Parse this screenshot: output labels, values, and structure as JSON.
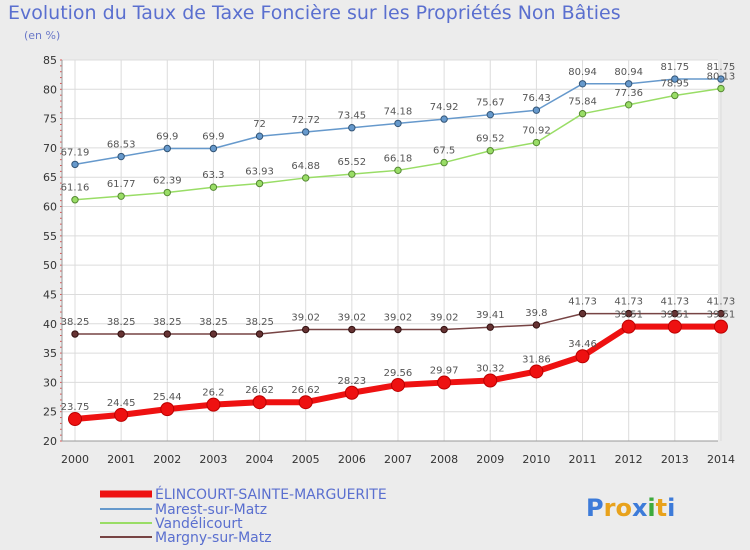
{
  "chart_data": {
    "type": "line",
    "title": "Evolution du Taux de Taxe Foncière sur les Propriétés Non Bâties",
    "ylabel": "(en %)",
    "xlabel": "",
    "ylim": [
      20,
      85
    ],
    "yticks": [
      20,
      25,
      30,
      35,
      40,
      45,
      50,
      55,
      60,
      65,
      70,
      75,
      80,
      85
    ],
    "grid": true,
    "legend_position": "bottom-left",
    "categories": [
      "2000",
      "2001",
      "2002",
      "2003",
      "2004",
      "2005",
      "2006",
      "2007",
      "2008",
      "2009",
      "2010",
      "2011",
      "2012",
      "2013",
      "2014"
    ],
    "series": [
      {
        "name": "ÉLINCOURT-SAINTE-MARGUERITE",
        "color": "#ee1111",
        "values": [
          23.75,
          24.45,
          25.44,
          26.2,
          26.62,
          26.62,
          28.23,
          29.56,
          29.97,
          30.32,
          31.86,
          34.46,
          39.51,
          39.51,
          39.51
        ],
        "labels": [
          "23.75",
          "24.45",
          "25.44",
          "26.2",
          "26.62",
          "26.62",
          "28.23",
          "29.56",
          "29.97",
          "30.32",
          "31.86",
          "34.46",
          "39.51",
          "39.51",
          "39.51"
        ]
      },
      {
        "name": "Marest-sur-Matz",
        "color": "#6699cc",
        "values": [
          67.19,
          68.53,
          69.9,
          69.9,
          72,
          72.72,
          73.45,
          74.18,
          74.92,
          75.67,
          76.43,
          80.94,
          80.94,
          81.75,
          81.75
        ],
        "labels": [
          "67.19",
          "68.53",
          "69.9",
          "69.9",
          "72",
          "72.72",
          "73.45",
          "74.18",
          "74.92",
          "75.67",
          "76.43",
          "80.94",
          "80.94",
          "81.75",
          "81.75"
        ]
      },
      {
        "name": "Vandélicourt",
        "color": "#99dd66",
        "values": [
          61.16,
          61.77,
          62.39,
          63.3,
          63.93,
          64.88,
          65.52,
          66.18,
          67.5,
          69.52,
          70.92,
          75.84,
          77.36,
          78.95,
          80.13
        ],
        "labels": [
          "61.16",
          "61.77",
          "62.39",
          "63.3",
          "63.93",
          "64.88",
          "65.52",
          "66.18",
          "67.5",
          "69.52",
          "70.92",
          "75.84",
          "77.36",
          "78.95",
          "80.13"
        ]
      },
      {
        "name": "Margny-sur-Matz",
        "color": "#774444",
        "values": [
          38.25,
          38.25,
          38.25,
          38.25,
          38.25,
          39.02,
          39.02,
          39.02,
          39.02,
          39.41,
          39.8,
          41.73,
          41.73,
          41.73,
          41.73
        ],
        "labels": [
          "38.25",
          "38.25",
          "38.25",
          "38.25",
          "38.25",
          "39.02",
          "39.02",
          "39.02",
          "39.02",
          "39.41",
          "39.8",
          "41.73",
          "41.73",
          "41.73",
          "41.73"
        ]
      }
    ]
  },
  "brand": {
    "letters": [
      "P",
      "r",
      "o",
      "x",
      "i",
      "t",
      "i"
    ],
    "colors": [
      "#3d7bd9",
      "#e8a21c",
      "#e8a21c",
      "#3d7bd9",
      "#3daa3d",
      "#e8a21c",
      "#3d7bd9"
    ]
  }
}
